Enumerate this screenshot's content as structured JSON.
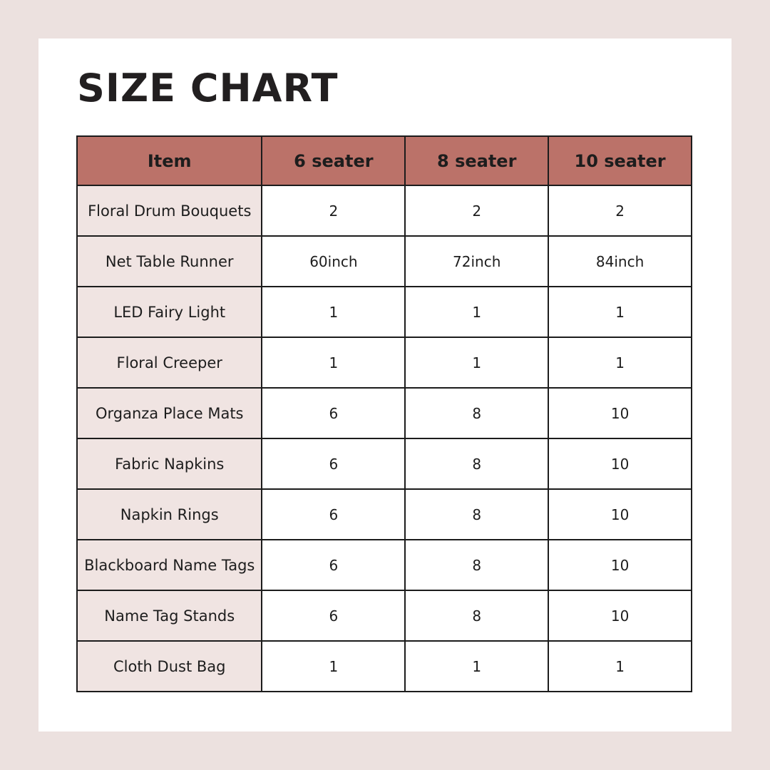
{
  "page": {
    "title": "SIZE CHART"
  },
  "colors": {
    "frame_background": "#ece1df",
    "card_background": "#ffffff",
    "header_background": "#bb7269",
    "item_column_background": "#f0e4e2",
    "border": "#1c1c1c",
    "text": "#1d1d1d"
  },
  "table": {
    "columns": [
      "Item",
      "6 seater",
      "8 seater",
      "10 seater"
    ],
    "rows": [
      {
        "item": "Floral Drum Bouquets",
        "values": [
          "2",
          "2",
          "2"
        ]
      },
      {
        "item": "Net Table Runner",
        "values": [
          "60inch",
          "72inch",
          "84inch"
        ]
      },
      {
        "item": "LED Fairy Light",
        "values": [
          "1",
          "1",
          "1"
        ]
      },
      {
        "item": "Floral Creeper",
        "values": [
          "1",
          "1",
          "1"
        ]
      },
      {
        "item": "Organza Place Mats",
        "values": [
          "6",
          "8",
          "10"
        ]
      },
      {
        "item": "Fabric Napkins",
        "values": [
          "6",
          "8",
          "10"
        ]
      },
      {
        "item": "Napkin Rings",
        "values": [
          "6",
          "8",
          "10"
        ]
      },
      {
        "item": "Blackboard Name Tags",
        "values": [
          "6",
          "8",
          "10"
        ]
      },
      {
        "item": "Name Tag Stands",
        "values": [
          "6",
          "8",
          "10"
        ]
      },
      {
        "item": "Cloth Dust Bag",
        "values": [
          "1",
          "1",
          "1"
        ]
      }
    ]
  }
}
